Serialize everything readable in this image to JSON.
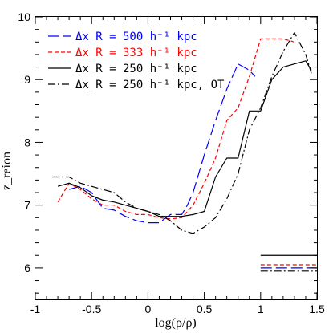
{
  "chart_data": {
    "type": "line",
    "xlabel": "log(ρ/ρ̄)",
    "ylabel": "z_reion",
    "xlim": [
      -1,
      1.5
    ],
    "ylim": [
      5.5,
      10
    ],
    "xticks": [
      -1,
      -0.5,
      0,
      0.5,
      1,
      1.5
    ],
    "xtick_labels": [
      "-1",
      "-0.5",
      "0",
      "0.5",
      "1",
      "1.5"
    ],
    "yticks": [
      6,
      7,
      8,
      9,
      10
    ],
    "ytick_labels": [
      "6",
      "7",
      "8",
      "9",
      "10"
    ],
    "legend_placement": "top-left",
    "series": [
      {
        "name": "Δx_R = 500 h⁻¹ kpc",
        "color": "#0000ff",
        "dash": "long-dash",
        "x": [
          -0.7,
          -0.6,
          -0.5,
          -0.4,
          -0.3,
          -0.2,
          -0.1,
          0,
          0.1,
          0.2,
          0.3,
          0.35,
          0.4,
          0.5,
          0.6,
          0.7,
          0.8,
          0.9,
          0.95
        ],
        "y": [
          7.25,
          7.3,
          7.2,
          6.95,
          6.92,
          6.82,
          6.75,
          6.72,
          6.72,
          6.85,
          6.85,
          7.0,
          7.2,
          7.8,
          8.35,
          8.85,
          9.25,
          9.15,
          9.05
        ],
        "avg_z": 6.0
      },
      {
        "name": "Δx_R = 333 h⁻¹ kpc",
        "color": "#ff0000",
        "dash": "short-dash",
        "x": [
          -0.8,
          -0.7,
          -0.6,
          -0.5,
          -0.4,
          -0.3,
          -0.2,
          -0.1,
          0,
          0.1,
          0.2,
          0.3,
          0.4,
          0.5,
          0.6,
          0.7,
          0.8,
          0.9,
          1.0,
          1.2,
          1.3
        ],
        "y": [
          7.05,
          7.35,
          7.25,
          7.1,
          7.0,
          7.0,
          6.9,
          6.85,
          6.85,
          6.8,
          6.78,
          6.8,
          7.0,
          7.35,
          7.75,
          8.35,
          8.55,
          9.05,
          9.65,
          9.65,
          9.6
        ],
        "avg_z": 6.05
      },
      {
        "name": "Δx_R = 250 h⁻¹ kpc",
        "color": "#000000",
        "dash": "solid",
        "x": [
          -0.8,
          -0.7,
          -0.6,
          -0.5,
          -0.4,
          -0.3,
          -0.2,
          -0.1,
          0,
          0.1,
          0.2,
          0.3,
          0.4,
          0.5,
          0.6,
          0.7,
          0.8,
          0.9,
          1.0,
          1.1,
          1.2,
          1.3,
          1.4,
          1.45
        ],
        "y": [
          7.3,
          7.35,
          7.28,
          7.15,
          7.08,
          7.05,
          7.0,
          6.95,
          6.9,
          6.82,
          6.82,
          6.82,
          6.85,
          6.9,
          7.45,
          7.75,
          7.75,
          8.5,
          8.5,
          9.0,
          9.2,
          9.25,
          9.3,
          9.15
        ],
        "avg_z": 6.2
      },
      {
        "name": "Δx_R = 250 h⁻¹ kpc, OT",
        "color": "#000000",
        "dash": "dash-dot",
        "x": [
          -0.85,
          -0.7,
          -0.6,
          -0.5,
          -0.4,
          -0.3,
          -0.2,
          -0.1,
          0,
          0.1,
          0.2,
          0.3,
          0.4,
          0.5,
          0.6,
          0.7,
          0.8,
          0.9,
          1.0,
          1.1,
          1.2,
          1.3,
          1.4,
          1.45
        ],
        "y": [
          7.45,
          7.45,
          7.35,
          7.3,
          7.25,
          7.2,
          7.05,
          6.95,
          6.9,
          6.85,
          6.75,
          6.6,
          6.55,
          6.65,
          6.8,
          7.1,
          7.5,
          8.2,
          8.55,
          9.05,
          9.45,
          9.75,
          9.4,
          9.1
        ],
        "avg_z": 5.95
      }
    ]
  }
}
